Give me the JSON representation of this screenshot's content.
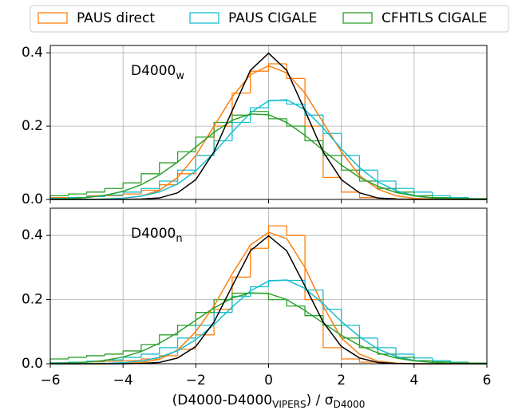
{
  "chart_data": [
    {
      "type": "histogram",
      "annotation": {
        "text": "D4000",
        "subscript": "w"
      },
      "xlim": [
        -6,
        6
      ],
      "ylim": [
        0,
        0.42
      ],
      "yticks": [
        {
          "value": 0,
          "label": "0.0"
        },
        {
          "value": 0.2,
          "label": "0.2"
        },
        {
          "value": 0.4,
          "label": "0.4"
        }
      ],
      "grid": true,
      "bins": [
        -6,
        -5.5,
        -5,
        -4.5,
        -4,
        -3.5,
        -3,
        -2.5,
        -2,
        -1.5,
        -1,
        -0.5,
        0,
        0.5,
        1,
        1.5,
        2,
        2.5,
        3,
        3.5,
        4,
        4.5,
        5,
        5.5,
        6
      ],
      "series": [
        {
          "name": "PAUS direct",
          "color": "#ff7f0e",
          "values": [
            0.005,
            0.005,
            0.01,
            0.01,
            0.015,
            0.025,
            0.04,
            0.07,
            0.12,
            0.2,
            0.29,
            0.35,
            0.37,
            0.33,
            0.2,
            0.06,
            0.02,
            0.005,
            0.003,
            0,
            0,
            0,
            0,
            0
          ]
        },
        {
          "name": "PAUS CIGALE",
          "color": "#17becf",
          "values": [
            0.003,
            0.005,
            0.008,
            0.012,
            0.02,
            0.03,
            0.05,
            0.08,
            0.12,
            0.16,
            0.21,
            0.25,
            0.27,
            0.26,
            0.23,
            0.18,
            0.12,
            0.08,
            0.05,
            0.03,
            0.02,
            0.01,
            0.005,
            0.002
          ]
        },
        {
          "name": "CFHTLS CIGALE",
          "color": "#2ca02c",
          "values": [
            0.01,
            0.015,
            0.02,
            0.03,
            0.045,
            0.07,
            0.1,
            0.13,
            0.17,
            0.21,
            0.23,
            0.24,
            0.22,
            0.2,
            0.16,
            0.12,
            0.08,
            0.05,
            0.03,
            0.02,
            0.01,
            0.005,
            0.003,
            0.002
          ]
        }
      ],
      "curve_x": [
        -6,
        -5.5,
        -5,
        -4.5,
        -4,
        -3.5,
        -3,
        -2.5,
        -2,
        -1.5,
        -1,
        -0.5,
        0,
        0.5,
        1,
        1.5,
        2,
        2.5,
        3,
        3.5,
        4,
        4.5,
        5,
        5.5,
        6
      ],
      "curves": [
        {
          "color": "#ff7f0e",
          "values": [
            0,
            0,
            0,
            0.001,
            0.003,
            0.009,
            0.025,
            0.06,
            0.12,
            0.2,
            0.28,
            0.34,
            0.365,
            0.345,
            0.29,
            0.21,
            0.13,
            0.065,
            0.028,
            0.01,
            0.003,
            0.001,
            0,
            0,
            0
          ]
        },
        {
          "color": "#17becf",
          "values": [
            0,
            0.0001,
            0.0003,
            0.001,
            0.0034,
            0.0089,
            0.0206,
            0.0425,
            0.078,
            0.127,
            0.184,
            0.236,
            0.269,
            0.272,
            0.245,
            0.195,
            0.138,
            0.087,
            0.048,
            0.024,
            0.0106,
            0.0041,
            0.0014,
            0.0004,
            0.0001
          ]
        },
        {
          "color": "#2ca02c",
          "values": [
            0.0009,
            0.0022,
            0.0052,
            0.0111,
            0.022,
            0.04,
            0.067,
            0.102,
            0.143,
            0.183,
            0.216,
            0.233,
            0.231,
            0.21,
            0.175,
            0.134,
            0.094,
            0.06,
            0.036,
            0.019,
            0.0096,
            0.0044,
            0.0018,
            0.0007,
            0.0002
          ]
        },
        {
          "color": "#000000",
          "values": [
            0,
            0,
            0,
            0,
            0,
            0.001,
            0.004,
            0.018,
            0.054,
            0.13,
            0.242,
            0.352,
            0.399,
            0.352,
            0.242,
            0.13,
            0.054,
            0.018,
            0.004,
            0.001,
            0,
            0,
            0,
            0,
            0
          ]
        }
      ]
    },
    {
      "type": "histogram",
      "annotation": {
        "text": "D4000",
        "subscript": "n"
      },
      "x_label": {
        "parts": [
          "(D4000-D4000",
          "VIPERS",
          ") / σ",
          "D4000"
        ]
      },
      "xlim": [
        -6,
        6
      ],
      "ylim": [
        0,
        0.485
      ],
      "xticks": [
        {
          "value": -6,
          "label": "−6"
        },
        {
          "value": -4,
          "label": "−4"
        },
        {
          "value": -2,
          "label": "−2"
        },
        0,
        2,
        4,
        6
      ],
      "yticks": [
        {
          "value": 0,
          "label": "0.0"
        },
        {
          "value": 0.2,
          "label": "0.2"
        },
        {
          "value": 0.4,
          "label": "0.4"
        }
      ],
      "grid": true,
      "bins": [
        -6,
        -5.5,
        -5,
        -4.5,
        -4,
        -3.5,
        -3,
        -2.5,
        -2,
        -1.5,
        -1,
        -0.5,
        0,
        0.5,
        1,
        1.5,
        2,
        2.5,
        3,
        3.5,
        4,
        4.5,
        5,
        5.5,
        6
      ],
      "series": [
        {
          "color": "#ff7f0e",
          "values": [
            0.003,
            0.004,
            0.006,
            0.008,
            0.01,
            0.015,
            0.025,
            0.045,
            0.09,
            0.17,
            0.27,
            0.36,
            0.43,
            0.4,
            0.2,
            0.05,
            0.015,
            0.005,
            0.002,
            0,
            0,
            0,
            0,
            0
          ]
        },
        {
          "color": "#17becf",
          "values": [
            0.003,
            0.005,
            0.008,
            0.012,
            0.02,
            0.03,
            0.05,
            0.08,
            0.12,
            0.16,
            0.21,
            0.24,
            0.26,
            0.26,
            0.23,
            0.17,
            0.12,
            0.08,
            0.05,
            0.03,
            0.018,
            0.01,
            0.005,
            0.002
          ]
        },
        {
          "color": "#2ca02c",
          "values": [
            0.015,
            0.02,
            0.025,
            0.03,
            0.04,
            0.06,
            0.09,
            0.12,
            0.16,
            0.2,
            0.22,
            0.22,
            0.2,
            0.18,
            0.15,
            0.12,
            0.08,
            0.05,
            0.03,
            0.02,
            0.01,
            0.006,
            0.003,
            0.002
          ]
        }
      ],
      "curve_x": [
        -6,
        -5.5,
        -5,
        -4.5,
        -4,
        -3.5,
        -3,
        -2.5,
        -2,
        -1.5,
        -1,
        -0.5,
        0,
        0.5,
        1,
        1.5,
        2,
        2.5,
        3,
        3.5,
        4,
        4.5,
        5,
        5.5,
        6
      ],
      "curves": [
        {
          "color": "#ff7f0e",
          "values": [
            0,
            0,
            0,
            0,
            0.001,
            0.004,
            0.014,
            0.043,
            0.1,
            0.18,
            0.28,
            0.37,
            0.41,
            0.39,
            0.3,
            0.18,
            0.08,
            0.03,
            0.008,
            0.002,
            0,
            0,
            0,
            0,
            0
          ]
        },
        {
          "color": "#17becf",
          "values": [
            0,
            0.0001,
            0.0003,
            0.001,
            0.0033,
            0.0085,
            0.02,
            0.041,
            0.075,
            0.122,
            0.177,
            0.227,
            0.258,
            0.261,
            0.235,
            0.187,
            0.132,
            0.084,
            0.046,
            0.023,
            0.0102,
            0.0039,
            0.0013,
            0.0004,
            0.0001
          ]
        },
        {
          "color": "#2ca02c",
          "values": [
            0.0009,
            0.0021,
            0.0049,
            0.0105,
            0.021,
            0.038,
            0.064,
            0.097,
            0.136,
            0.174,
            0.205,
            0.221,
            0.219,
            0.2,
            0.166,
            0.127,
            0.089,
            0.057,
            0.034,
            0.018,
            0.0091,
            0.0042,
            0.0017,
            0.0007,
            0.0002
          ]
        },
        {
          "color": "#000000",
          "values": [
            0,
            0,
            0,
            0,
            0,
            0.001,
            0.004,
            0.018,
            0.054,
            0.13,
            0.242,
            0.352,
            0.399,
            0.352,
            0.242,
            0.13,
            0.054,
            0.018,
            0.004,
            0.001,
            0,
            0,
            0,
            0,
            0
          ]
        }
      ]
    }
  ]
}
